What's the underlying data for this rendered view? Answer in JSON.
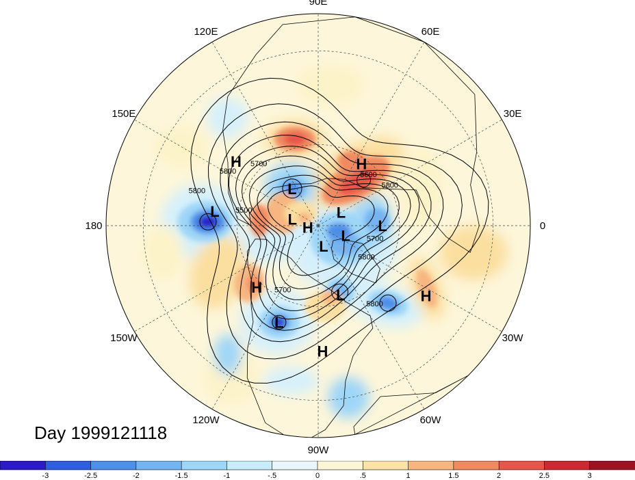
{
  "map": {
    "projection": "north-polar-stereographic",
    "longitude_labels": [
      {
        "text": "90E",
        "lon": 90
      },
      {
        "text": "60E",
        "lon": 60
      },
      {
        "text": "30E",
        "lon": 30
      },
      {
        "text": "0",
        "lon": 0
      },
      {
        "text": "30W",
        "lon": -30
      },
      {
        "text": "60W",
        "lon": -60
      },
      {
        "text": "90W",
        "lon": -90
      },
      {
        "text": "120W",
        "lon": -120
      },
      {
        "text": "150W",
        "lon": -150
      },
      {
        "text": "180",
        "lon": 180
      },
      {
        "text": "150E",
        "lon": 150
      },
      {
        "text": "120E",
        "lon": 120
      }
    ],
    "pressure_centers": [
      {
        "type": "H",
        "lon": 55,
        "colat": 28
      },
      {
        "type": "H",
        "lon": 142,
        "colat": 38
      },
      {
        "type": "L",
        "lon": 125,
        "colat": 17
      },
      {
        "type": "L",
        "lon": 166,
        "colat": 10
      },
      {
        "type": "H",
        "lon": -170,
        "colat": 4
      },
      {
        "type": "L",
        "lon": 172,
        "colat": 38
      },
      {
        "type": "L",
        "lon": 30,
        "colat": 10
      },
      {
        "type": "L",
        "lon": 0,
        "colat": 24
      },
      {
        "type": "L",
        "lon": -20,
        "colat": 11
      },
      {
        "type": "L",
        "lon": -75,
        "colat": 8
      },
      {
        "type": "H",
        "lon": -135,
        "colat": 32
      },
      {
        "type": "L",
        "lon": -112,
        "colat": 38
      },
      {
        "type": "L",
        "lon": -72,
        "colat": 27
      },
      {
        "type": "H",
        "lon": -88,
        "colat": 45
      },
      {
        "type": "H",
        "lon": -33,
        "colat": 46
      }
    ],
    "contour_labels": [
      "5700",
      "5800",
      "5600",
      "5800",
      "5800",
      "5500",
      "5800",
      "5700",
      "5700",
      "5800"
    ],
    "colors": {
      "neg_3": "#2b1ac9",
      "neg_25": "#2f5ee0",
      "neg_2": "#4e8fe8",
      "neg_15": "#74b4f0",
      "neg_1": "#9ed6f8",
      "neg_05": "#d6f0fb",
      "pos_05": "#fdf3c9",
      "pos_1": "#fbdfa0",
      "pos_15": "#f7b681",
      "pos_2": "#f08a60",
      "pos_25": "#e8554a",
      "pos_3": "#b71a2a"
    }
  },
  "day_label": "Day 1999121118",
  "colorbar": {
    "ticks": [
      "-3",
      "-2.5",
      "-2",
      "-1.5",
      "-1",
      "-.5",
      "0",
      ".5",
      "1",
      "1.5",
      "2",
      "2.5",
      "3"
    ],
    "colors": [
      "#2b1ac9",
      "#2f5ee0",
      "#4e8fe8",
      "#74b4f0",
      "#9ed6f8",
      "#c9ecfa",
      "#e9f7fc",
      "#fdf6d6",
      "#fbe3a8",
      "#f7b681",
      "#f08a60",
      "#e8554a",
      "#cc2a30",
      "#9e1223"
    ]
  }
}
